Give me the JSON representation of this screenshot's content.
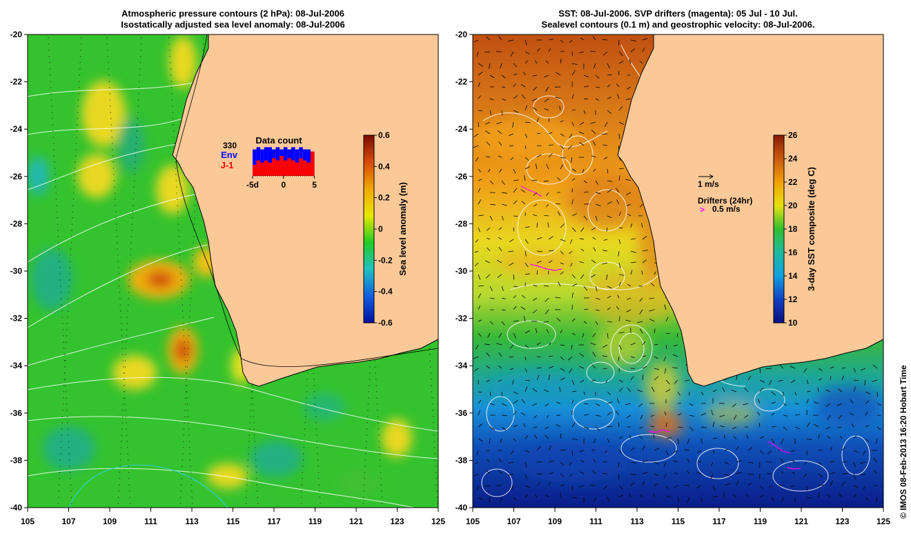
{
  "left_panel": {
    "title_line1": "Atmospheric pressure contours (2 hPa): 08-Jul-2006",
    "title_line2": "Isostatically adjusted sea level anomaly: 08-Jul-2006",
    "colorbar_label": "Sea level anomaly (m)",
    "colorbar_ticks": [
      "0.6",
      "0.4",
      "0.2",
      "0",
      "-0.2",
      "-0.4",
      "-0.6"
    ],
    "colorbar_colors": [
      "#7a0a00",
      "#d94a08",
      "#f0a800",
      "#e8e800",
      "#22cc22",
      "#20c0c0",
      "#1060e0",
      "#0010a0"
    ],
    "data_count": {
      "title": "Data count",
      "count": "330",
      "env_label": "Env",
      "j1_label": "J-1",
      "env_color": "#0000ff",
      "j1_color": "#ff0000",
      "axis_ticks": [
        "-5d",
        "0",
        "5"
      ],
      "env_values": [
        12,
        13,
        12,
        13,
        13,
        12,
        13,
        12,
        13,
        12,
        13,
        12,
        13,
        12,
        12,
        11
      ],
      "j1_values": [
        5,
        7,
        6,
        7,
        6,
        8,
        7,
        9,
        7,
        8,
        7,
        6,
        8,
        7,
        6,
        11
      ]
    }
  },
  "right_panel": {
    "title_line1": "SST: 08-Jul-2006. SVP drifters (magenta): 05 Jul - 10 Jul.",
    "title_line2": "Sealevel contours (0.1 m) and geostrophic velocity: 08-Jul-2006.",
    "colorbar_label": "3-day SST composite (deg C)",
    "colorbar_ticks": [
      "26",
      "24",
      "22",
      "20",
      "18",
      "16",
      "14",
      "12",
      "10"
    ],
    "colorbar_colors": [
      "#8a1a00",
      "#cc5a10",
      "#f0a000",
      "#e8e010",
      "#30c030",
      "#20b8a0",
      "#10a0e0",
      "#1040c0",
      "#0a1080"
    ],
    "velocity_label": "1 m/s",
    "drifter_title": "Drifters (24hr)",
    "drifter_speed": "0.5 m/s",
    "drifter_color": "#ff00ff",
    "drifter_symbol": ">"
  },
  "axes": {
    "x_ticks": [
      "105",
      "107",
      "109",
      "111",
      "113",
      "115",
      "117",
      "119",
      "121",
      "123",
      "125"
    ],
    "y_ticks": [
      "-20",
      "-22",
      "-24",
      "-26",
      "-28",
      "-30",
      "-32",
      "-34",
      "-36",
      "-38",
      "-40"
    ]
  },
  "colors": {
    "land": "#fbc898",
    "coast": "#000000",
    "contour": "#ffffff"
  },
  "credit": "© IMOS 08-Feb-2013 16:20 Hobart Time"
}
